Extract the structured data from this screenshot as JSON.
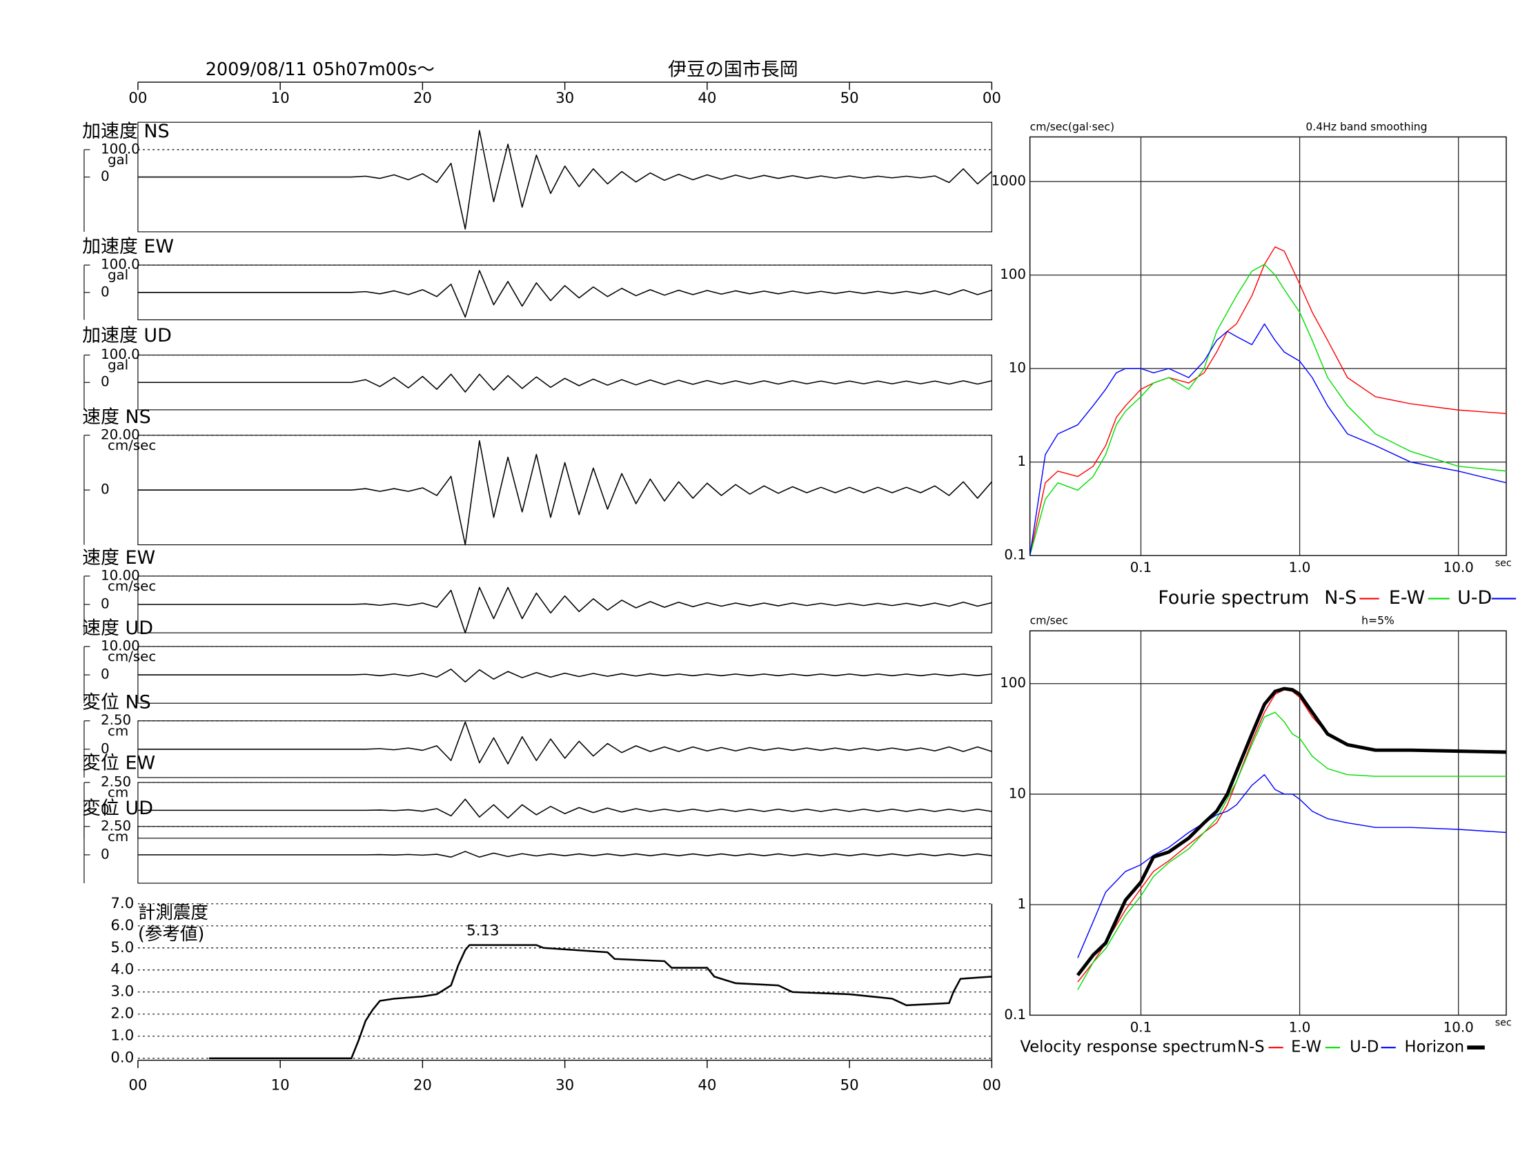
{
  "chart_data": [
    {
      "type": "waveform",
      "title": "2009/08/11  05h07m00s〜",
      "location": "伊豆の国市長岡",
      "xlim": [
        0,
        60
      ],
      "xticks": [
        {
          "value": 0,
          "label": "00"
        },
        10,
        20,
        30,
        40,
        50,
        {
          "value": 60,
          "label": "00"
        }
      ],
      "x": [
        0,
        15,
        16,
        17,
        18,
        19,
        20,
        21,
        22,
        23,
        24,
        25,
        26,
        27,
        28,
        29,
        30,
        31,
        32,
        33,
        34,
        35,
        36,
        37,
        38,
        39,
        40,
        41,
        42,
        43,
        44,
        45,
        46,
        47,
        48,
        49,
        50,
        51,
        52,
        53,
        54,
        55,
        56,
        57,
        58,
        59,
        60
      ],
      "series": [
        {
          "name": "加速度 NS",
          "unit": "gal",
          "color": "#000000",
          "ylim": [
            -200,
            200
          ],
          "yticks": [
            {
              "value": 100,
              "label": "100.0"
            },
            0
          ],
          "values": [
            0,
            0,
            3,
            -5,
            8,
            -10,
            12,
            -20,
            50,
            -190,
            170,
            -90,
            120,
            -110,
            80,
            -60,
            40,
            -35,
            30,
            -25,
            20,
            -18,
            15,
            -12,
            10,
            -10,
            8,
            -8,
            7,
            -6,
            6,
            -5,
            5,
            -5,
            4,
            -4,
            4,
            -4,
            3,
            -3,
            3,
            -3,
            4,
            -20,
            30,
            -25,
            20
          ]
        },
        {
          "name": "加速度 EW",
          "unit": "gal",
          "color": "#000000",
          "ylim": [
            -100,
            100
          ],
          "yticks": [
            {
              "value": 100,
              "label": "100.0"
            },
            0
          ],
          "values": [
            0,
            0,
            3,
            -5,
            6,
            -8,
            10,
            -15,
            30,
            -90,
            80,
            -45,
            40,
            -50,
            35,
            -30,
            25,
            -20,
            20,
            -15,
            15,
            -12,
            10,
            -10,
            8,
            -8,
            7,
            -6,
            6,
            -5,
            5,
            -5,
            5,
            -4,
            4,
            -4,
            4,
            -4,
            4,
            -4,
            4,
            -5,
            6,
            -8,
            10,
            -8,
            8
          ]
        },
        {
          "name": "加速度 UD",
          "unit": "gal",
          "color": "#000000",
          "ylim": [
            -100,
            100
          ],
          "yticks": [
            {
              "value": 100,
              "label": "100.0"
            },
            0
          ],
          "values": [
            0,
            0,
            10,
            -15,
            18,
            -20,
            22,
            -25,
            30,
            -35,
            30,
            -28,
            25,
            -22,
            20,
            -18,
            15,
            -12,
            12,
            -10,
            10,
            -9,
            9,
            -8,
            8,
            -7,
            7,
            -6,
            6,
            -6,
            6,
            -6,
            6,
            -5,
            5,
            -5,
            5,
            -5,
            5,
            -5,
            5,
            -5,
            5,
            -6,
            6,
            -6,
            6
          ]
        },
        {
          "name": "速度 NS",
          "unit": "cm/sec",
          "color": "#000000",
          "ylim": [
            -20,
            20
          ],
          "yticks": [
            {
              "value": 20,
              "label": "20.00"
            },
            0
          ],
          "values": [
            0,
            0,
            0.5,
            -0.5,
            0.5,
            -0.5,
            0.8,
            -2,
            5,
            -20,
            18,
            -10,
            12,
            -8,
            13,
            -10,
            10,
            -9,
            8,
            -7,
            6,
            -5,
            4,
            -4,
            3,
            -3,
            2.5,
            -2,
            2,
            -1.5,
            1.5,
            -1.2,
            1.2,
            -1,
            1,
            -1,
            1,
            -1,
            1,
            -1,
            1,
            -1,
            1.5,
            -2,
            3,
            -3,
            3
          ]
        },
        {
          "name": "速度 EW",
          "unit": "cm/sec",
          "color": "#000000",
          "ylim": [
            -10,
            10
          ],
          "yticks": [
            {
              "value": 10,
              "label": "10.00"
            },
            0
          ],
          "values": [
            0,
            0,
            0.2,
            -0.3,
            0.3,
            -0.4,
            0.5,
            -1,
            5,
            -10,
            6,
            -5,
            6,
            -5,
            4,
            -3,
            3,
            -2.5,
            2,
            -2,
            1.5,
            -1.2,
            1,
            -1,
            0.8,
            -0.8,
            0.6,
            -0.6,
            0.5,
            -0.5,
            0.5,
            -0.5,
            0.5,
            -0.4,
            0.4,
            -0.4,
            0.4,
            -0.4,
            0.4,
            -0.4,
            0.4,
            -0.5,
            0.5,
            -0.6,
            0.8,
            -0.6,
            0.6
          ]
        },
        {
          "name": "速度 UD",
          "unit": "cm/sec",
          "color": "#000000",
          "ylim": [
            -10,
            10
          ],
          "yticks": [
            {
              "value": 10,
              "label": "10.00"
            },
            0
          ],
          "values": [
            0,
            0,
            0.2,
            -0.3,
            0.3,
            -0.4,
            0.5,
            -0.8,
            2,
            -2.5,
            1.8,
            -1.5,
            1.2,
            -1,
            0.8,
            -0.8,
            0.6,
            -0.6,
            0.5,
            -0.5,
            0.4,
            -0.4,
            0.4,
            -0.3,
            0.3,
            -0.3,
            0.3,
            -0.3,
            0.3,
            -0.3,
            0.3,
            -0.3,
            0.3,
            -0.3,
            0.3,
            -0.3,
            0.3,
            -0.3,
            0.3,
            -0.3,
            0.3,
            -0.3,
            0.3,
            -0.3,
            0.3,
            -0.3,
            0.3
          ]
        },
        {
          "name": "変位 NS",
          "unit": "cm",
          "color": "#000000",
          "ylim": [
            -2.5,
            2.5
          ],
          "yticks": [
            {
              "value": 2.5,
              "label": "2.50"
            },
            0
          ],
          "values": [
            0,
            0,
            0,
            0.05,
            -0.05,
            0.1,
            -0.1,
            0.3,
            -1,
            2.4,
            -1.2,
            1,
            -1.3,
            1.1,
            -1,
            0.9,
            -0.8,
            0.7,
            -0.6,
            0.5,
            -0.3,
            0.3,
            -0.2,
            0.2,
            -0.2,
            0.2,
            -0.15,
            0.15,
            -0.15,
            0.15,
            -0.1,
            0.1,
            -0.1,
            0.1,
            -0.1,
            0.1,
            -0.1,
            0.1,
            -0.1,
            0.1,
            -0.1,
            0.1,
            -0.15,
            0.2,
            -0.2,
            0.2,
            -0.2
          ]
        },
        {
          "name": "変位 EW",
          "unit": "cm",
          "color": "#000000",
          "ylim": [
            -2.5,
            2.5
          ],
          "yticks": [
            {
              "value": 2.5,
              "label": "2.50"
            },
            0
          ],
          "values": [
            0,
            0,
            0,
            0.03,
            -0.03,
            0.05,
            -0.08,
            0.15,
            -0.5,
            1,
            -0.6,
            0.5,
            -0.7,
            0.5,
            -0.4,
            0.35,
            -0.3,
            0.25,
            -0.2,
            0.2,
            -0.15,
            0.15,
            -0.1,
            0.1,
            -0.1,
            0.1,
            -0.1,
            0.1,
            -0.1,
            0.1,
            -0.1,
            0.1,
            -0.1,
            0.1,
            -0.1,
            0.1,
            -0.1,
            0.1,
            -0.1,
            0.1,
            -0.1,
            0.1,
            -0.1,
            0.1,
            -0.1,
            0.1,
            -0.1
          ]
        },
        {
          "name": "変位 UD",
          "unit": "cm",
          "color": "#000000",
          "ylim": [
            -2.5,
            2.5
          ],
          "yticks": [
            {
              "value": 2.5,
              "label": "2.50"
            },
            0
          ],
          "values": [
            0,
            0,
            0,
            0.02,
            -0.02,
            0.03,
            -0.03,
            0.05,
            -0.2,
            0.3,
            -0.2,
            0.15,
            -0.15,
            0.1,
            -0.1,
            0.08,
            -0.08,
            0.08,
            -0.08,
            0.08,
            -0.08,
            0.08,
            -0.08,
            0.08,
            -0.08,
            0.08,
            -0.08,
            0.08,
            -0.08,
            0.08,
            -0.08,
            0.08,
            -0.08,
            0.08,
            -0.08,
            0.08,
            -0.08,
            0.08,
            -0.08,
            0.08,
            -0.08,
            0.08,
            -0.08,
            0.08,
            -0.08,
            0.08,
            -0.08
          ]
        }
      ]
    },
    {
      "type": "line",
      "label": [
        "計測震度",
        "(参考値)"
      ],
      "color": "#000000",
      "xlim": [
        0,
        60
      ],
      "xticks": [
        {
          "value": 0,
          "label": "00"
        },
        10,
        20,
        30,
        40,
        50,
        {
          "value": 60,
          "label": "00"
        }
      ],
      "ylim": [
        0,
        7
      ],
      "yticks": [
        {
          "value": 0,
          "label": "0.0"
        },
        {
          "value": 1,
          "label": "1.0"
        },
        {
          "value": 2,
          "label": "2.0"
        },
        {
          "value": 3,
          "label": "3.0"
        },
        {
          "value": 4,
          "label": "4.0"
        },
        {
          "value": 5,
          "label": "5.0"
        },
        {
          "value": 6,
          "label": "6.0"
        },
        {
          "value": 7,
          "label": "7.0"
        }
      ],
      "x": [
        5,
        15,
        15.5,
        16,
        16.5,
        17,
        18,
        20,
        21,
        22,
        22.5,
        23,
        23.3,
        28,
        28.5,
        33,
        33.5,
        37,
        37.5,
        40,
        40.5,
        42,
        45,
        46,
        50,
        53,
        54,
        57,
        57.3,
        57.8,
        60
      ],
      "values": [
        0,
        0,
        0.8,
        1.7,
        2.2,
        2.6,
        2.7,
        2.8,
        2.9,
        3.3,
        4.2,
        4.9,
        5.13,
        5.13,
        5.0,
        4.8,
        4.5,
        4.4,
        4.1,
        4.1,
        3.7,
        3.4,
        3.3,
        3.0,
        2.9,
        2.7,
        2.4,
        2.5,
        3.0,
        3.6,
        3.7
      ],
      "annotations": [
        {
          "x": 23.3,
          "y": 5.13,
          "text": "5.13"
        }
      ]
    },
    {
      "type": "loglog",
      "ylabel": "cm/sec(gal·sec)",
      "note": "0.4Hz band smoothing",
      "legend_title": "Fourie spectrum",
      "xlabel": "sec",
      "grid": true,
      "xlim": [
        0.02,
        20
      ],
      "ylim": [
        0.1,
        3000
      ],
      "xticks": [
        0.1,
        {
          "value": 1,
          "label": "1.0"
        },
        {
          "value": 10,
          "label": "10.0"
        }
      ],
      "yticks": [
        0.1,
        1,
        10,
        100,
        1000
      ],
      "x": [
        0.02,
        0.025,
        0.03,
        0.04,
        0.05,
        0.06,
        0.07,
        0.08,
        0.1,
        0.12,
        0.15,
        0.2,
        0.25,
        0.3,
        0.35,
        0.4,
        0.5,
        0.6,
        0.7,
        0.8,
        1.0,
        1.2,
        1.5,
        2,
        3,
        5,
        10,
        20
      ],
      "series": [
        {
          "name": "N-S",
          "color": "#ff0000",
          "values": [
            0.1,
            0.6,
            0.8,
            0.7,
            0.9,
            1.5,
            3,
            4,
            6,
            7,
            8,
            7,
            9,
            15,
            25,
            30,
            60,
            130,
            200,
            180,
            80,
            40,
            20,
            8,
            5,
            4.2,
            3.6,
            3.3
          ]
        },
        {
          "name": "E-W",
          "color": "#00dd00",
          "values": [
            0.1,
            0.4,
            0.6,
            0.5,
            0.7,
            1.2,
            2.5,
            3.5,
            5,
            7,
            8,
            6,
            10,
            25,
            40,
            60,
            110,
            130,
            100,
            70,
            40,
            20,
            8,
            4,
            2,
            1.3,
            0.9,
            0.8
          ]
        },
        {
          "name": "U-D",
          "color": "#0000ff",
          "values": [
            0.1,
            1.2,
            2,
            2.5,
            4,
            6,
            9,
            10,
            10,
            9,
            10,
            8,
            12,
            20,
            25,
            22,
            18,
            30,
            20,
            15,
            12,
            8,
            4,
            2,
            1.5,
            1.0,
            0.8,
            0.6
          ]
        }
      ]
    },
    {
      "type": "loglog",
      "ylabel": "cm/sec",
      "note": "h=5%",
      "legend_title": "Velocity response spectrum",
      "xlabel": "sec",
      "grid": true,
      "xlim": [
        0.02,
        20
      ],
      "ylim": [
        0.1,
        300
      ],
      "xticks": [
        0.1,
        {
          "value": 1,
          "label": "1.0"
        },
        {
          "value": 10,
          "label": "10.0"
        }
      ],
      "yticks": [
        0.1,
        1,
        10,
        100
      ],
      "x": [
        0.04,
        0.05,
        0.06,
        0.08,
        0.1,
        0.12,
        0.15,
        0.2,
        0.25,
        0.3,
        0.35,
        0.4,
        0.5,
        0.6,
        0.7,
        0.8,
        0.9,
        1.0,
        1.2,
        1.5,
        2,
        3,
        5,
        10,
        20
      ],
      "series": [
        {
          "name": "N-S",
          "color": "#ff0000",
          "linewidth": 1,
          "values": [
            0.2,
            0.3,
            0.45,
            0.9,
            1.4,
            2,
            2.5,
            3.5,
            4.5,
            5.5,
            8,
            13,
            30,
            55,
            80,
            88,
            85,
            75,
            50,
            35,
            28,
            25,
            25,
            24.5,
            24
          ]
        },
        {
          "name": "E-W",
          "color": "#00dd00",
          "linewidth": 1,
          "values": [
            0.17,
            0.3,
            0.4,
            0.8,
            1.2,
            1.8,
            2.4,
            3.2,
            4.5,
            6,
            9,
            13,
            28,
            50,
            55,
            45,
            35,
            32,
            22,
            17,
            15,
            14.5,
            14.5,
            14.5,
            14.5
          ]
        },
        {
          "name": "U-D",
          "color": "#0000ff",
          "linewidth": 1,
          "values": [
            0.33,
            0.7,
            1.3,
            2,
            2.3,
            2.8,
            3.3,
            4.5,
            5.5,
            6.5,
            7,
            8,
            12,
            15,
            11,
            10,
            10,
            9,
            7,
            6,
            5.5,
            5,
            5,
            4.8,
            4.5
          ]
        },
        {
          "name": "Horizon",
          "color": "#000000",
          "linewidth": 3.5,
          "values": [
            0.23,
            0.35,
            0.45,
            1.1,
            1.6,
            2.7,
            3,
            4,
            5.5,
            7,
            10,
            16,
            35,
            65,
            85,
            90,
            88,
            80,
            55,
            35,
            28,
            25,
            25,
            24.5,
            24
          ]
        }
      ]
    }
  ]
}
